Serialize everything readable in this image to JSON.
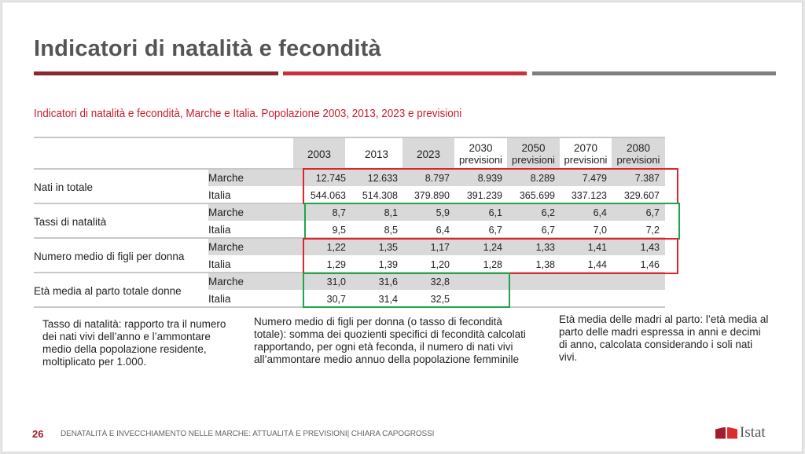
{
  "title": "Indicatori di natalità e fecondità",
  "colors": {
    "bar1": "#8c2633",
    "bar2": "#c9323a",
    "bar3": "#7f7f7f",
    "subtitle": "#c8202f",
    "highlight_red": "#e0242c",
    "highlight_green": "#1fa54a"
  },
  "subtitle": "Indicatori di natalità e fecondità, Marche e Italia. Popolazione 2003, 2013, 2023 e previsioni",
  "table": {
    "columns": [
      {
        "year": "2003",
        "sub": ""
      },
      {
        "year": "2013",
        "sub": ""
      },
      {
        "year": "2023",
        "sub": ""
      },
      {
        "year": "2030",
        "sub": "previsioni"
      },
      {
        "year": "2050",
        "sub": "previsioni"
      },
      {
        "year": "2070",
        "sub": "previsioni"
      },
      {
        "year": "2080",
        "sub": "previsioni"
      }
    ],
    "groups": [
      {
        "label": "Nati in totale",
        "rows": [
          {
            "area": "Marche",
            "values": [
              "12.745",
              "12.633",
              "8.797",
              "8.939",
              "8.289",
              "7.479",
              "7.387"
            ]
          },
          {
            "area": "Italia",
            "values": [
              "544.063",
              "514.308",
              "379.890",
              "391.239",
              "365.699",
              "337.123",
              "329.607"
            ]
          }
        ]
      },
      {
        "label": "Tassi di natalità",
        "rows": [
          {
            "area": "Marche",
            "values": [
              "8,7",
              "8,1",
              "5,9",
              "6,1",
              "6,2",
              "6,4",
              "6,7"
            ]
          },
          {
            "area": "Italia",
            "values": [
              "9,5",
              "8,5",
              "6,4",
              "6,7",
              "6,7",
              "7,0",
              "7,2"
            ]
          }
        ]
      },
      {
        "label": "Numero medio di figli per donna",
        "rows": [
          {
            "area": "Marche",
            "values": [
              "1,22",
              "1,35",
              "1,17",
              "1,24",
              "1,33",
              "1,41",
              "1,43"
            ]
          },
          {
            "area": "Italia",
            "values": [
              "1,29",
              "1,39",
              "1,20",
              "1,28",
              "1,38",
              "1,44",
              "1,46"
            ]
          }
        ]
      },
      {
        "label": "Età media al parto totale donne",
        "rows": [
          {
            "area": "Marche",
            "values": [
              "31,0",
              "31,6",
              "32,8",
              "",
              "",
              "",
              ""
            ]
          },
          {
            "area": "Italia",
            "values": [
              "30,7",
              "31,4",
              "32,5",
              "",
              "",
              "",
              ""
            ]
          }
        ]
      }
    ]
  },
  "notes": [
    "Tasso di natalità: rapporto tra il numero dei nati vivi dell’anno e l’ammontare medio della popolazione residente, moltiplicato per 1.000.",
    "Numero medio di figli per donna (o tasso di fecondità totale): somma dei quozienti specifici di fecondità calcolati rapportando, per ogni età feconda, il numero di nati vivi all’ammontare medio annuo della popolazione femminile",
    "Età media delle madri al parto: l’età media al parto delle madri espressa in anni e decimi di anno, calcolata considerando i soli nati vivi."
  ],
  "footer": {
    "page_number": "26",
    "text": "DENATALITÀ E INVECCHIAMENTO NELLE MARCHE: ATTUALITÀ E PREVISIONI| CHIARA CAPOGROSSI",
    "logo_text": "Istat"
  }
}
